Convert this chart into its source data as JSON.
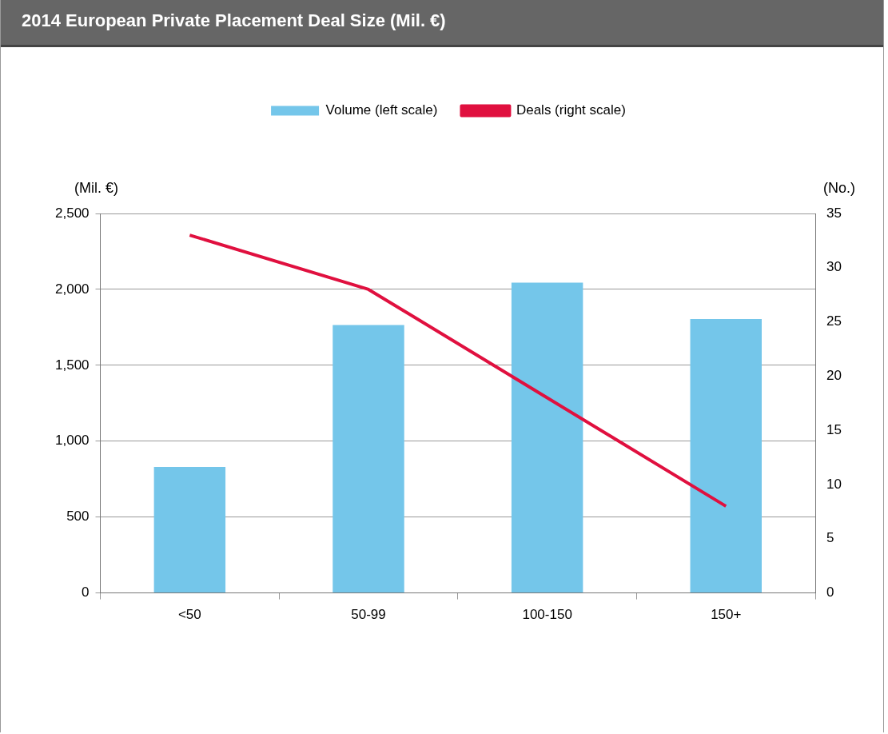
{
  "chart_data": {
    "type": "bar",
    "title": "2014 European Private Placement Deal Size (Mil. €)",
    "ylabel": "(Mil. €)",
    "y2label": "(No.)",
    "categories": [
      "<50",
      "50-99",
      "100-150",
      "150+"
    ],
    "series": [
      {
        "name": "Volume (left scale)",
        "color": "#74c6ea",
        "values": [
          830,
          1765,
          2045,
          1805
        ]
      },
      {
        "name": "Deals (right scale)",
        "type": "line",
        "axis": "y2",
        "color": "#e0103f",
        "values": [
          33,
          28,
          18,
          8
        ]
      }
    ],
    "ylim": [
      0,
      2500
    ],
    "yticks": [
      0,
      500,
      {
        "value": 1000,
        "label": "1,000"
      },
      {
        "value": 1500,
        "label": "1,500"
      },
      {
        "value": 2000,
        "label": "2,000"
      },
      {
        "value": 2500,
        "label": "2,500"
      }
    ],
    "y2lim": [
      0,
      35
    ],
    "y2ticks": [
      0,
      5,
      10,
      15,
      20,
      25,
      30,
      35
    ],
    "grid": "y",
    "legend": "top",
    "marker": "none",
    "line_style": "solid"
  }
}
